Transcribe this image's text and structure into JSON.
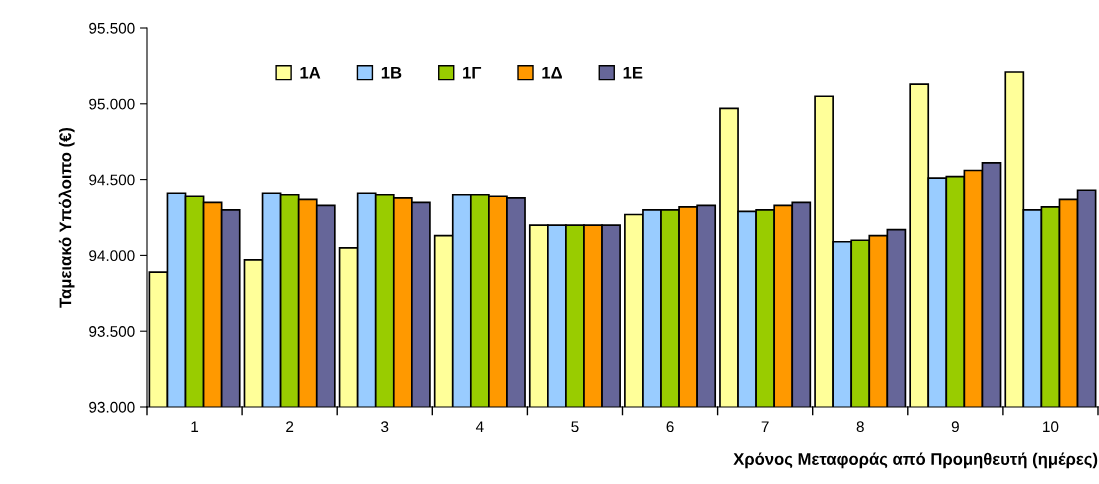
{
  "chart_data": {
    "type": "bar",
    "xlabel": "Χρόνος Μεταφοράς από Προμηθευτή (ημέρες)",
    "ylabel": "Ταμειακό Υπόλοιπο (€)",
    "categories": [
      "1",
      "2",
      "3",
      "4",
      "5",
      "6",
      "7",
      "8",
      "9",
      "10"
    ],
    "series": [
      {
        "name": "1A",
        "color": "#ffff99",
        "values": [
          93890,
          93970,
          94050,
          94130,
          94200,
          94270,
          94970,
          95050,
          95130,
          95210
        ]
      },
      {
        "name": "1B",
        "color": "#99ccff",
        "values": [
          94410,
          94410,
          94410,
          94400,
          94200,
          94300,
          94290,
          94090,
          94510,
          94300
        ]
      },
      {
        "name": "1Γ",
        "color": "#99cc00",
        "values": [
          94390,
          94400,
          94400,
          94400,
          94200,
          94300,
          94300,
          94100,
          94520,
          94320
        ]
      },
      {
        "name": "1Δ",
        "color": "#ff9900",
        "values": [
          94350,
          94370,
          94380,
          94390,
          94200,
          94320,
          94330,
          94130,
          94560,
          94370
        ]
      },
      {
        "name": "1E",
        "color": "#666699",
        "values": [
          94300,
          94330,
          94350,
          94380,
          94200,
          94330,
          94350,
          94170,
          94610,
          94430
        ]
      }
    ],
    "ylim": [
      93000,
      95500
    ],
    "yticks": [
      {
        "value": 93000,
        "label": "93.000"
      },
      {
        "value": 93500,
        "label": "93.500"
      },
      {
        "value": 94000,
        "label": "94.000"
      },
      {
        "value": 94500,
        "label": "94.500"
      },
      {
        "value": 95000,
        "label": "95.000"
      },
      {
        "value": 95500,
        "label": "95.500"
      }
    ],
    "grid": false,
    "legend": "top left"
  }
}
